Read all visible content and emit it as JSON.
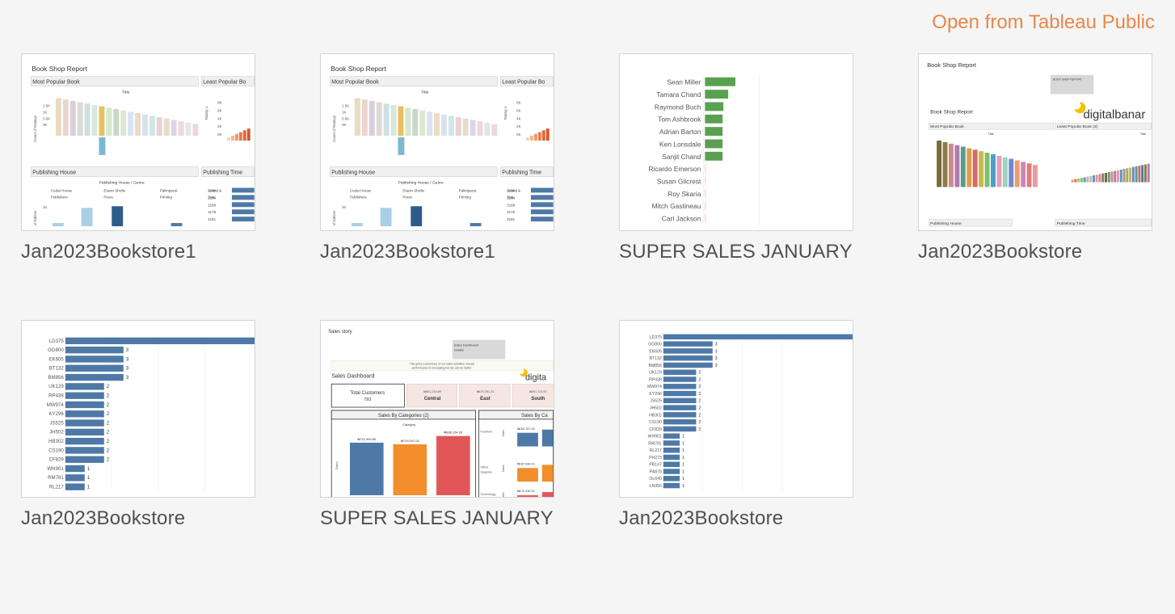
{
  "header": {
    "open_label": "Open from Tableau Public"
  },
  "workbooks": [
    {
      "title": "Jan2023Bookstore1",
      "thumb": {
        "report_title": "Book Shop Report",
        "most_popular": "Most Popular Book",
        "least_popular": "Least Popular Bo",
        "title_label": "Title",
        "count_label": "Count of Ratings",
        "rating_label": "Rating 1.",
        "y_ticks": [
          "1.5K",
          "1K",
          "0.5K",
          "0K"
        ],
        "r_ticks": [
          "8K",
          "6K",
          "4K",
          "2K",
          "0K"
        ],
        "publishing_house": "Publishing House",
        "publishing_time": "Publishing Time",
        "genre_label": "Publishing House / Genre",
        "pub_cols": [
          "Cedar House Publishers",
          "Etaoin Shrdlu Press",
          "Palimpsest Printing",
          "Sound & Sea.."
        ],
        "edition_label": "of Edition",
        "edition_tick": "20",
        "time_rows": [
          "2180",
          "2184",
          "2189",
          "2178",
          "2181"
        ]
      }
    },
    {
      "title": "Jan2023Bookstore1",
      "thumb": {
        "report_title": "Book Shop Report",
        "most_popular": "Most Popular Book",
        "least_popular": "Least Popular Bo",
        "title_label": "Title",
        "count_label": "Count of Ratings",
        "rating_label": "Rating 1.",
        "y_ticks": [
          "1.5K",
          "1K",
          "0.5K",
          "0K"
        ],
        "r_ticks": [
          "8K",
          "6K",
          "4K",
          "2K",
          "0K"
        ],
        "publishing_house": "Publishing House",
        "publishing_time": "Publishing Time",
        "genre_label": "Publishing House / Genre",
        "pub_cols": [
          "Cedar House Publishers",
          "Etaoin Shrdlu Press",
          "Palimpsest Printing",
          "Sound & Sea.."
        ],
        "edition_label": "of Edition",
        "edition_tick": "20",
        "time_rows": [
          "2180",
          "2184",
          "2189",
          "2178",
          "2181"
        ]
      }
    },
    {
      "title": "SUPER SALES JANUARY",
      "thumb": {
        "people": [
          {
            "name": "Sean Miller",
            "value": 38
          },
          {
            "name": "Tamara Chand",
            "value": 29
          },
          {
            "name": "Raymond Buch",
            "value": 23
          },
          {
            "name": "Tom Ashbrook",
            "value": 22
          },
          {
            "name": "Adrian Barton",
            "value": 22
          },
          {
            "name": "Ken Lonsdale",
            "value": 22
          },
          {
            "name": "Sanjit Chand",
            "value": 22
          },
          {
            "name": "Ricardo Emerson",
            "value": 1
          },
          {
            "name": "Susan Gilcrest",
            "value": 1
          },
          {
            "name": "Roy Skaria",
            "value": 1
          },
          {
            "name": "Mitch Gastineau",
            "value": 1
          },
          {
            "name": "Carl Jackson",
            "value": 1
          }
        ]
      }
    },
    {
      "title": "Jan2023Bookstore",
      "thumb": {
        "report_title": "Book Shop Report",
        "box_label": "BOOK SHOP REPORT",
        "sub_title": "Book Shop Report",
        "logo_text": "digitalbanar",
        "most_popular": "Most Popular Book",
        "least_popular": "Least Popular Book (2)",
        "title_label": "Title",
        "publishing_house": "Publishing House",
        "publishing_time": "Publishing Time"
      }
    },
    {
      "title": "Jan2023Bookstore",
      "thumb": {
        "rows": [
          {
            "code": "LD375",
            "value": 12
          },
          {
            "code": "GG800",
            "value": 3
          },
          {
            "code": "EK605",
            "value": 3
          },
          {
            "code": "BT132",
            "value": 3
          },
          {
            "code": "BM856",
            "value": 3
          },
          {
            "code": "UK129",
            "value": 2
          },
          {
            "code": "RP438",
            "value": 2
          },
          {
            "code": "MW974",
            "value": 2
          },
          {
            "code": "KY296",
            "value": 2
          },
          {
            "code": "JS525",
            "value": 2
          },
          {
            "code": "JH502",
            "value": 2
          },
          {
            "code": "HB302",
            "value": 2
          },
          {
            "code": "CS190",
            "value": 2
          },
          {
            "code": "CF829",
            "value": 2
          },
          {
            "code": "WH901",
            "value": 1
          },
          {
            "code": "RM781",
            "value": 1
          },
          {
            "code": "RL217",
            "value": 1
          }
        ]
      }
    },
    {
      "title": "SUPER SALES JANUARY",
      "thumb": {
        "story_title": "Sales story",
        "box_text": "Sales Dashboard Details",
        "summary": "This gives a summary of our sales activities overall, performance is increasing but we can do better.",
        "dashboard_title": "Sales Dashboard",
        "logo_text": "digita",
        "kpis": [
          {
            "label": "Total Customers",
            "value": "793"
          },
          {
            "label": "Central",
            "value": "₦501,239.89"
          },
          {
            "label": "East",
            "value": "₦678,781.24"
          },
          {
            "label": "South",
            "value": "₦391,721.91"
          }
        ],
        "categories_title": "Sales By Categories (2)",
        "category_label": "Category",
        "sales_label": "Sales",
        "bars": [
          {
            "label": "₦741,999.80",
            "value": 741999.8,
            "color": "#4e79a7"
          },
          {
            "label": "₦719,047.03",
            "value": 719047.03,
            "color": "#f28e2b"
          },
          {
            "label": "₦836,154.03",
            "value": 836154.03,
            "color": "#e15759"
          }
        ],
        "right_title": "Sales By Ca",
        "right_rows": [
          {
            "label": "Furniture",
            "value": "₦163,797.16"
          },
          {
            "label": "Office Supplies",
            "value": "₦167,026.41"
          },
          {
            "label": "Technology",
            "value": "₦170,416.31"
          }
        ]
      }
    },
    {
      "title": "Jan2023Bookstore",
      "thumb": {
        "rows": [
          {
            "code": "LD375",
            "value": 12
          },
          {
            "code": "GG800",
            "value": 3
          },
          {
            "code": "EK605",
            "value": 3
          },
          {
            "code": "BT132",
            "value": 3
          },
          {
            "code": "BM856",
            "value": 3
          },
          {
            "code": "UK129",
            "value": 2
          },
          {
            "code": "RP438",
            "value": 2
          },
          {
            "code": "MW974",
            "value": 2
          },
          {
            "code": "KY296",
            "value": 2
          },
          {
            "code": "JS525",
            "value": 2
          },
          {
            "code": "JH502",
            "value": 2
          },
          {
            "code": "HB302",
            "value": 2
          },
          {
            "code": "CS190",
            "value": 2
          },
          {
            "code": "CF829",
            "value": 2
          },
          {
            "code": "WH901",
            "value": 1
          },
          {
            "code": "RM781",
            "value": 1
          },
          {
            "code": "RL217",
            "value": 1
          },
          {
            "code": "PH273",
            "value": 1
          },
          {
            "code": "PB147",
            "value": 1
          },
          {
            "code": "PA878",
            "value": 1
          },
          {
            "code": "OL640",
            "value": 1
          },
          {
            "code": "LN356",
            "value": 1
          }
        ]
      }
    }
  ]
}
